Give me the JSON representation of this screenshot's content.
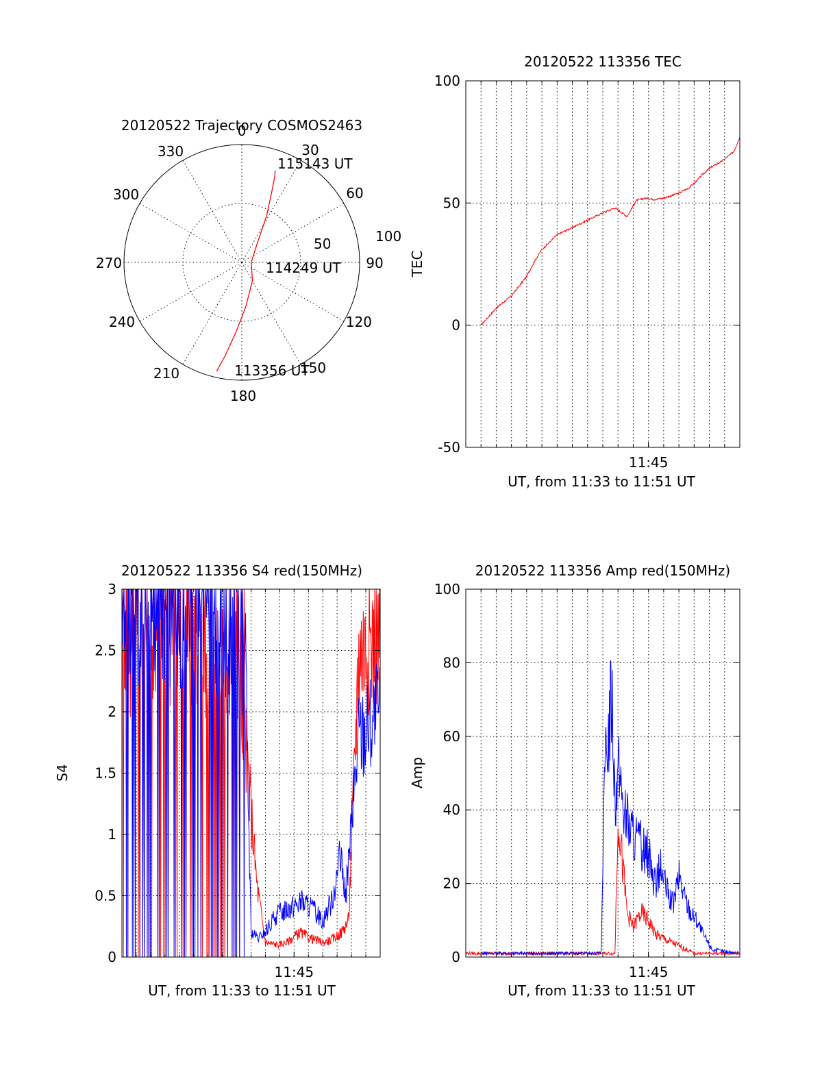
{
  "colors": {
    "red": "#ff0000",
    "blue": "#0000ff",
    "axis": "#000000"
  },
  "chart_data": [
    {
      "id": "trajectory",
      "type": "polar",
      "title": "20120522 Trajectory COSMOS2463",
      "angle_labels": [
        "0",
        "30",
        "60",
        "90",
        "120",
        "150",
        "180",
        "210",
        "240",
        "270",
        "300",
        "330"
      ],
      "radius_labels": [
        "50",
        "100"
      ],
      "rmax": 100,
      "annotations": [
        "115143 UT",
        "114249 UT",
        "113356 UT"
      ],
      "track": {
        "color": "red",
        "points": [
          {
            "az": 193,
            "el_dist": 95
          },
          {
            "az": 190,
            "el_dist": 80
          },
          {
            "az": 185,
            "el_dist": 60
          },
          {
            "az": 175,
            "el_dist": 38
          },
          {
            "az": 150,
            "el_dist": 18
          },
          {
            "az": 90,
            "el_dist": 8
          },
          {
            "az": 40,
            "el_dist": 20
          },
          {
            "az": 28,
            "el_dist": 45
          },
          {
            "az": 23,
            "el_dist": 65
          },
          {
            "az": 21,
            "el_dist": 78
          },
          {
            "az": 20,
            "el_dist": 83
          }
        ]
      }
    },
    {
      "id": "tec",
      "type": "line",
      "title": "20120522 113356 TEC",
      "ylabel": "TEC",
      "xlabel": "UT, from 11:33 to 11:51 UT",
      "ylim": [
        -50,
        100
      ],
      "yticks": [
        "-50",
        "0",
        "50",
        "100"
      ],
      "xticks": [
        {
          "label": "11:45",
          "min": 45
        }
      ],
      "xlim_min": [
        33.0,
        51.0
      ],
      "grid": true,
      "series": [
        {
          "color": "red",
          "x_min": [
            34.0,
            35.0,
            36.0,
            37.0,
            37.5,
            38.0,
            39.0,
            40.0,
            41.0,
            42.0,
            42.8,
            43.6,
            44.2,
            44.8,
            45.4,
            46.0,
            47.0,
            47.6,
            48.0,
            48.6,
            49.2,
            49.8,
            50.2,
            50.6,
            51.0
          ],
          "values": [
            0,
            7,
            12,
            20,
            26,
            31,
            37,
            40,
            43,
            46,
            48,
            44.5,
            51,
            52,
            51.5,
            52,
            54,
            56,
            58,
            62,
            65,
            67,
            69,
            71,
            77
          ]
        }
      ]
    },
    {
      "id": "s4",
      "type": "line",
      "title": "20120522 113356 S4 red(150MHz)",
      "ylabel": "S4",
      "xlabel": "UT, from 11:33 to 11:51 UT",
      "ylim": [
        0,
        3
      ],
      "yticks": [
        "0",
        "0.5",
        "1",
        "1.5",
        "2",
        "2.5",
        "3"
      ],
      "xticks": [
        {
          "label": "11:45",
          "min": 45
        }
      ],
      "xlim_min": [
        33.0,
        51.0
      ],
      "grid": true,
      "series": [
        {
          "color": "red",
          "x_min": [
            33.0,
            37.5,
            41.0,
            41.6,
            42.0,
            42.4,
            43.0,
            43.8,
            44.5,
            45.4,
            46.2,
            47.0,
            47.6,
            48.3,
            48.8,
            49.5,
            51.0
          ],
          "values": [
            2.5,
            2.6,
            2.2,
            1.8,
            1.2,
            0.6,
            0.12,
            0.1,
            0.12,
            0.2,
            0.15,
            0.12,
            0.14,
            0.2,
            0.3,
            2.5,
            2.6
          ]
        },
        {
          "color": "blue",
          "x_min": [
            33.0,
            37.5,
            41.6,
            42.0,
            42.5,
            43.0,
            43.8,
            44.6,
            45.5,
            46.2,
            47.0,
            47.6,
            48.2,
            48.6,
            49.5,
            51.0
          ],
          "values": [
            2.8,
            2.8,
            2.4,
            0.2,
            0.15,
            0.2,
            0.35,
            0.4,
            0.45,
            0.4,
            0.3,
            0.45,
            0.8,
            0.5,
            1.8,
            2.0
          ]
        }
      ]
    },
    {
      "id": "amp",
      "type": "line",
      "title": "20120522 113356 Amp red(150MHz)",
      "ylabel": "Amp",
      "xlabel": "UT, from 11:33 to 11:51 UT",
      "ylim": [
        0,
        100
      ],
      "yticks": [
        "0",
        "20",
        "40",
        "60",
        "80",
        "100"
      ],
      "xticks": [
        {
          "label": "11:45",
          "min": 45
        }
      ],
      "xlim_min": [
        33.0,
        51.0
      ],
      "grid": true,
      "series": [
        {
          "color": "red",
          "x_min": [
            33.0,
            42.8,
            43.0,
            43.3,
            43.6,
            44.0,
            44.5,
            45.0,
            45.5,
            46.0,
            46.5,
            47.0,
            47.5,
            48.0,
            51.0
          ],
          "values": [
            1,
            1,
            40,
            25,
            12,
            8,
            12,
            10,
            6,
            5,
            4,
            3,
            2,
            1,
            1
          ]
        },
        {
          "color": "blue",
          "x_min": [
            34.0,
            41.9,
            42.1,
            42.3,
            42.6,
            42.8,
            43.1,
            43.4,
            43.8,
            44.2,
            44.6,
            45.0,
            45.4,
            45.8,
            46.2,
            46.6,
            47.0,
            47.4,
            47.8,
            48.2,
            48.6,
            49.2,
            50.0,
            51.0
          ],
          "values": [
            1,
            1,
            45,
            60,
            74,
            45,
            50,
            40,
            35,
            32,
            30,
            28,
            20,
            24,
            18,
            14,
            22,
            16,
            12,
            10,
            6,
            2,
            1.5,
            1
          ]
        }
      ]
    }
  ]
}
